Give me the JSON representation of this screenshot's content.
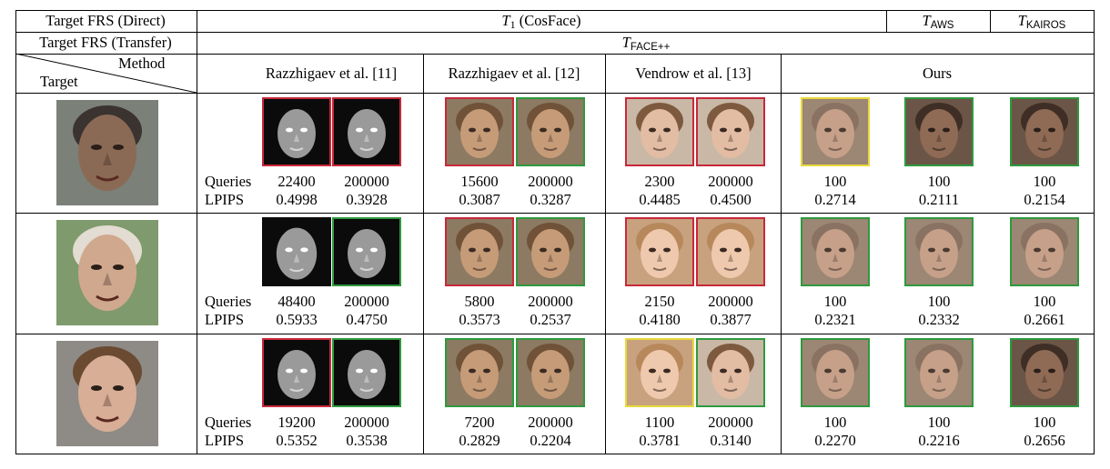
{
  "header": {
    "row1_label": "Target FRS (Direct)",
    "row2_label": "Target FRS (Transfer)",
    "method_label": "Method",
    "target_label": "Target",
    "t1_main": "T",
    "t1_sub": "1",
    "t1_rest": "(CosFace)",
    "taws_main": "T",
    "taws_sub": "AWS",
    "tkairos_main": "T",
    "tkairos_sub": "KAIROS",
    "tface_main": "T",
    "tface_sub": "FACE++"
  },
  "methods": [
    "Razzhigaev et al. [11]",
    "Razzhigaev et al. [12]",
    "Vendrow et al. [13]",
    "Ours"
  ],
  "metric_labels": [
    "Queries",
    "LPIPS"
  ],
  "rows": [
    {
      "target_icon": "target-face-photo",
      "values": [
        {
          "queries": "22400",
          "lpips": "0.4998",
          "frame": "red",
          "style": "dark-ghost"
        },
        {
          "queries": "200000",
          "lpips": "0.3928",
          "frame": "red",
          "style": "dark-ghost"
        },
        {
          "queries": "15600",
          "lpips": "0.3087",
          "frame": "red",
          "style": "warm-face"
        },
        {
          "queries": "200000",
          "lpips": "0.3287",
          "frame": "green",
          "style": "warm-face"
        },
        {
          "queries": "2300",
          "lpips": "0.4485",
          "frame": "red",
          "style": "woman-face"
        },
        {
          "queries": "200000",
          "lpips": "0.4500",
          "frame": "red",
          "style": "woman-face"
        },
        {
          "queries": "100",
          "lpips": "0.2714",
          "frame": "yellow",
          "style": "soft-face"
        },
        {
          "queries": "100",
          "lpips": "0.2111",
          "frame": "green",
          "style": "dark-face"
        },
        {
          "queries": "100",
          "lpips": "0.2154",
          "frame": "green",
          "style": "dark-face"
        }
      ]
    },
    {
      "target_icon": "target-face-photo",
      "values": [
        {
          "queries": "48400",
          "lpips": "0.5933",
          "frame": "none",
          "style": "dark-ghost"
        },
        {
          "queries": "200000",
          "lpips": "0.4750",
          "frame": "green",
          "style": "dark-ghost"
        },
        {
          "queries": "5800",
          "lpips": "0.3573",
          "frame": "red",
          "style": "warm-face"
        },
        {
          "queries": "200000",
          "lpips": "0.2537",
          "frame": "green",
          "style": "warm-face"
        },
        {
          "queries": "2150",
          "lpips": "0.4180",
          "frame": "red",
          "style": "child-face"
        },
        {
          "queries": "200000",
          "lpips": "0.3877",
          "frame": "red",
          "style": "child-face"
        },
        {
          "queries": "100",
          "lpips": "0.2321",
          "frame": "green",
          "style": "soft-face"
        },
        {
          "queries": "100",
          "lpips": "0.2332",
          "frame": "green",
          "style": "soft-face"
        },
        {
          "queries": "100",
          "lpips": "0.2661",
          "frame": "green",
          "style": "soft-face"
        }
      ]
    },
    {
      "target_icon": "target-face-photo",
      "values": [
        {
          "queries": "19200",
          "lpips": "0.5352",
          "frame": "red",
          "style": "dark-ghost"
        },
        {
          "queries": "200000",
          "lpips": "0.3538",
          "frame": "green",
          "style": "dark-ghost"
        },
        {
          "queries": "7200",
          "lpips": "0.2829",
          "frame": "green",
          "style": "warm-face"
        },
        {
          "queries": "200000",
          "lpips": "0.2204",
          "frame": "green",
          "style": "warm-face"
        },
        {
          "queries": "1100",
          "lpips": "0.3781",
          "frame": "yellow",
          "style": "child-face"
        },
        {
          "queries": "200000",
          "lpips": "0.3140",
          "frame": "green",
          "style": "woman-face"
        },
        {
          "queries": "100",
          "lpips": "0.2270",
          "frame": "green",
          "style": "soft-face"
        },
        {
          "queries": "100",
          "lpips": "0.2216",
          "frame": "green",
          "style": "soft-face"
        },
        {
          "queries": "100",
          "lpips": "0.2656",
          "frame": "green",
          "style": "dark-face"
        }
      ]
    }
  ],
  "colors": {
    "frame_red": "#c8283a",
    "frame_green": "#2e9a3e",
    "frame_yellow": "#e8d93a"
  }
}
